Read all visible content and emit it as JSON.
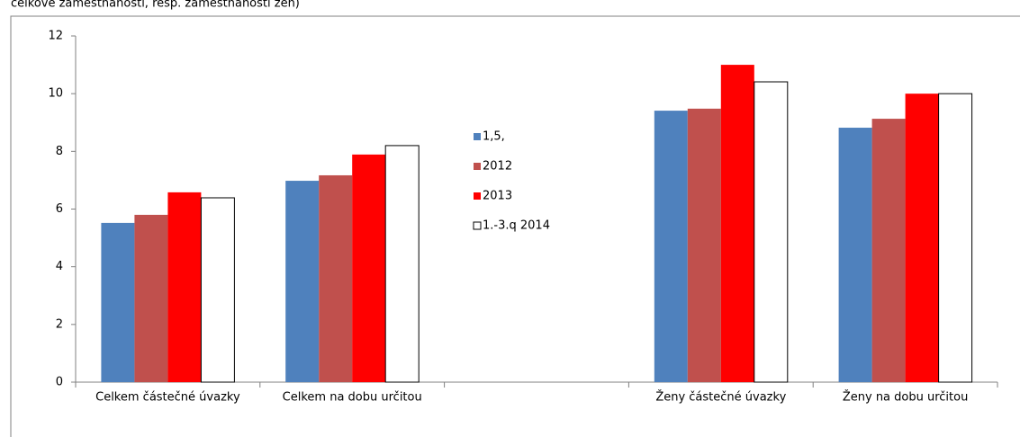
{
  "chart_data": {
    "type": "bar",
    "subtitle": "celkové zaměstnanosti, resp. zaměstnanosti žen)",
    "categories": [
      "Celkem částečné úvazky",
      "Celkem na dobu určitou",
      null,
      "Ženy částečné úvazky",
      "Ženy na dobu určitou"
    ],
    "series": [
      {
        "name": "1,5,",
        "color": "#4f81bd",
        "values": [
          5.52,
          6.98,
          null,
          9.41,
          8.82
        ]
      },
      {
        "name": "2012",
        "color": "#c0504d",
        "values": [
          5.8,
          7.17,
          null,
          9.48,
          9.13
        ]
      },
      {
        "name": "2013",
        "color": "#ff0000",
        "values": [
          6.58,
          7.89,
          null,
          11.0,
          10.0
        ]
      },
      {
        "name": "1.-3.q 2014",
        "color": "#ffffff",
        "values": [
          6.39,
          8.2,
          null,
          10.41,
          10.0
        ]
      }
    ],
    "ylim": [
      0,
      12
    ],
    "yticks": [
      0,
      2,
      4,
      6,
      8,
      10,
      12
    ],
    "grid": false
  }
}
